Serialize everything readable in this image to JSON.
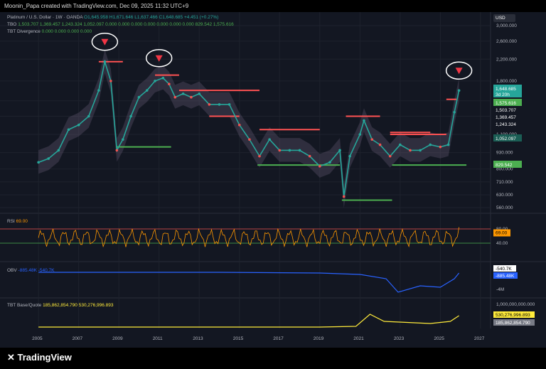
{
  "header": {
    "text": "Moonin_Papa created with TradingView.com, Dec 09, 2025 11:32 UTC+9"
  },
  "legend": {
    "title_line": "Platinum / U.S. Dollar · 1W · OANDA",
    "ohlc": "O1,645.958 H1,671.646 L1,637.466 C1,648.685 +4.451 (+0.27%)",
    "tbo_label": "TBO",
    "tbo_values": "1,503.707 1,369.457 1,243.324 1,052.097 0.000 0.000 0.000 0.000 0.000 0.000 0.000 829.542 1,575.616",
    "div_label": "TBT Divergence",
    "div_values": "0.000 0.000 0.000 0.000",
    "rsi_label": "RSI",
    "rsi_value": "69.00",
    "obv_label": "OBV",
    "obv_values": "-885.48K -540.7K",
    "tbt_label": "TBT Base/Quote",
    "tbt_values": "185,862,854.790 530,276,996.893"
  },
  "currency": "USD",
  "price_axis": {
    "ticks": [
      "3,000.000",
      "2,600.000",
      "2,200.000",
      "1,800.000",
      "1,500.000",
      "1,300.000",
      "1,100.000",
      "930.000",
      "800.000",
      "710.000",
      "630.000",
      "560.000"
    ],
    "tags": [
      {
        "label": "1,648.685",
        "extra": "3d 20h",
        "bg": "#26a69a",
        "fg": "#ffffff"
      },
      {
        "label": "1,575.616",
        "bg": "#4caf50",
        "fg": "#ffffff"
      },
      {
        "label": "1,503.707",
        "bg": "#131722",
        "fg": "#ffffff"
      },
      {
        "label": "1,369.457",
        "bg": "#131722",
        "fg": "#ffffff"
      },
      {
        "label": "1,243.324",
        "bg": "#131722",
        "fg": "#ffffff"
      },
      {
        "label": "1,052.097",
        "bg": "#1b5e55",
        "fg": "#ffffff"
      },
      {
        "label": "829.542",
        "bg": "#4caf50",
        "fg": "#ffffff"
      }
    ]
  },
  "rsi_axis": {
    "ticks": [
      "80.00",
      "40.00"
    ],
    "tag": "69.00"
  },
  "obv_axis": {
    "ticks": [
      "-4M"
    ],
    "tags": [
      "-540.7K",
      "-885.48K"
    ]
  },
  "tbt_axis": {
    "ticks": [
      "1,000,000,000.000"
    ],
    "tags": [
      "530,276,996.893",
      "185,862,854.790"
    ]
  },
  "time_axis": [
    "2005",
    "2007",
    "2009",
    "2011",
    "2013",
    "2015",
    "2017",
    "2019",
    "2021",
    "2023",
    "2025",
    "2027"
  ],
  "footer": {
    "logo": "TradingView"
  },
  "colors": {
    "bg": "#131722",
    "up": "#26a69a",
    "down": "#ef5350",
    "rsi": "#ff9800",
    "obv": "#2962ff",
    "tbt": "#ffeb3b",
    "resist": "#ff5252",
    "support": "#4caf50"
  },
  "chart_data": {
    "type": "line",
    "title": "Platinum / U.S. Dollar · 1W · OANDA",
    "x_range": [
      2004.5,
      2027.5
    ],
    "y_scale": "log",
    "price_series": {
      "name": "Platinum",
      "x": [
        2005.0,
        2005.5,
        2006.0,
        2006.5,
        2007.0,
        2007.5,
        2008.0,
        2008.3,
        2008.6,
        2008.9,
        2009.2,
        2009.6,
        2010.0,
        2010.4,
        2010.8,
        2011.2,
        2011.5,
        2011.8,
        2012.2,
        2012.6,
        2013.0,
        2013.5,
        2014.0,
        2014.5,
        2015.0,
        2015.5,
        2016.0,
        2016.5,
        2017.0,
        2017.5,
        2018.0,
        2018.5,
        2019.0,
        2019.5,
        2020.0,
        2020.2,
        2020.5,
        2021.0,
        2021.2,
        2021.6,
        2022.0,
        2022.5,
        2023.0,
        2023.5,
        2024.0,
        2024.5,
        2025.0,
        2025.4,
        2025.7,
        2025.93
      ],
      "values": [
        850,
        880,
        950,
        1150,
        1200,
        1300,
        1650,
        2150,
        1800,
        950,
        1050,
        1300,
        1550,
        1650,
        1800,
        1850,
        1750,
        1550,
        1600,
        1550,
        1600,
        1450,
        1450,
        1450,
        1200,
        1050,
        900,
        1050,
        950,
        950,
        950,
        900,
        820,
        850,
        950,
        620,
        900,
        1100,
        1250,
        1050,
        1000,
        900,
        1000,
        950,
        950,
        1000,
        980,
        1000,
        1350,
        1648.685
      ]
    },
    "levels": [
      {
        "name": "resistance",
        "value": 2150,
        "x": [
          2008.0,
          2009.2
        ]
      },
      {
        "name": "resistance",
        "value": 1900,
        "x": [
          2010.8,
          2012.0
        ]
      },
      {
        "name": "resistance",
        "value": 1650,
        "x": [
          2012.0,
          2016.0
        ]
      },
      {
        "name": "resistance",
        "value": 1300,
        "x": [
          2013.5,
          2015.0
        ]
      },
      {
        "name": "resistance",
        "value": 1150,
        "x": [
          2016.0,
          2019.0
        ]
      },
      {
        "name": "resistance",
        "value": 1300,
        "x": [
          2020.3,
          2022.0
        ]
      },
      {
        "name": "resistance",
        "value": 1120,
        "x": [
          2022.5,
          2024.5
        ]
      },
      {
        "name": "resistance",
        "value": 1100,
        "x": [
          2022.5,
          2025.3
        ]
      },
      {
        "name": "resistance",
        "value": 1520,
        "x": [
          2025.3,
          2025.8
        ]
      },
      {
        "name": "support",
        "value": 980,
        "x": [
          2008.9,
          2011.6
        ]
      },
      {
        "name": "support",
        "value": 829.542,
        "x": [
          2015.9,
          2020.0
        ]
      },
      {
        "name": "support",
        "value": 829.542,
        "x": [
          2022.6,
          2026.3
        ]
      },
      {
        "name": "support",
        "value": 600,
        "x": [
          2020.1,
          2022.6
        ]
      }
    ],
    "rsi": {
      "ylim": [
        0,
        100
      ],
      "current": 69.0,
      "overbought": 80,
      "oversold": 40
    },
    "obv": {
      "current": -540.7,
      "unit": "K"
    },
    "tbt_base_quote": {
      "current": 530276996.893
    }
  }
}
